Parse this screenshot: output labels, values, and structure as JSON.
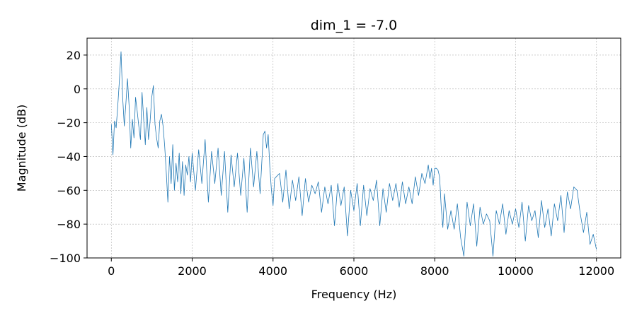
{
  "chart_data": {
    "type": "line",
    "title": "dim_1 = -7.0",
    "xlabel": "Frequency (Hz)",
    "ylabel": "Magnitude (dB)",
    "xlim": [
      -600,
      12600
    ],
    "ylim": [
      -100,
      30
    ],
    "x_ticks": [
      0,
      2000,
      4000,
      6000,
      8000,
      10000,
      12000
    ],
    "y_ticks": [
      20,
      0,
      -20,
      -40,
      -60,
      -80,
      -100
    ],
    "grid": true,
    "line_color": "#1f77b4",
    "series": [
      {
        "x": [
          0,
          40,
          80,
          120,
          160,
          200,
          240,
          280,
          320,
          360,
          400,
          440,
          480,
          520,
          560,
          600,
          640,
          680,
          720,
          760,
          800,
          840,
          880,
          920,
          960,
          1000,
          1040,
          1080,
          1120,
          1160,
          1200,
          1240,
          1280,
          1320,
          1360,
          1400,
          1440,
          1480,
          1520,
          1560,
          1600,
          1640,
          1680,
          1720,
          1760,
          1800,
          1840,
          1880,
          1920,
          1960,
          2000,
          2080,
          2160,
          2240,
          2320,
          2400,
          2480,
          2560,
          2640,
          2720,
          2800,
          2880,
          2960,
          3040,
          3120,
          3200,
          3280,
          3360,
          3440,
          3520,
          3600,
          3680,
          3760,
          3800,
          3840,
          3880,
          3920,
          3960,
          4000,
          4040,
          4080,
          4160,
          4240,
          4320,
          4400,
          4480,
          4560,
          4640,
          4720,
          4800,
          4880,
          4960,
          5040,
          5120,
          5200,
          5280,
          5360,
          5440,
          5520,
          5600,
          5680,
          5760,
          5840,
          5920,
          6000,
          6080,
          6160,
          6240,
          6320,
          6400,
          6480,
          6560,
          6640,
          6720,
          6800,
          6880,
          6960,
          7040,
          7120,
          7200,
          7280,
          7360,
          7440,
          7520,
          7600,
          7680,
          7760,
          7840,
          7880,
          7920,
          7960,
          8000,
          8040,
          8080,
          8120,
          8160,
          8200,
          8240,
          8320,
          8400,
          8480,
          8560,
          8640,
          8720,
          8800,
          8880,
          8960,
          9040,
          9120,
          9200,
          9280,
          9360,
          9440,
          9520,
          9600,
          9680,
          9760,
          9840,
          9920,
          10000,
          10080,
          10160,
          10240,
          10320,
          10400,
          10480,
          10560,
          10640,
          10720,
          10800,
          10880,
          10960,
          11040,
          11120,
          11200,
          11280,
          11360,
          11440,
          11520,
          11600,
          11680,
          11760,
          11840,
          11920,
          12000
        ],
        "y": [
          -21,
          -39,
          -19,
          -23,
          -10,
          5,
          22,
          -5,
          -22,
          -9,
          6,
          -10,
          -35,
          -18,
          -29,
          -5,
          -13,
          -22,
          -30,
          -2,
          -18,
          -33,
          -11,
          -30,
          -19,
          -5,
          2,
          -21,
          -29,
          -35,
          -19,
          -15,
          -22,
          -34,
          -50,
          -67,
          -40,
          -56,
          -33,
          -60,
          -44,
          -55,
          -38,
          -62,
          -43,
          -63,
          -45,
          -51,
          -40,
          -55,
          -38,
          -60,
          -36,
          -56,
          -30,
          -67,
          -37,
          -56,
          -35,
          -63,
          -37,
          -73,
          -39,
          -58,
          -38,
          -63,
          -41,
          -73,
          -35,
          -58,
          -37,
          -62,
          -27,
          -25,
          -35,
          -27,
          -46,
          -60,
          -69,
          -53,
          -52,
          -50,
          -67,
          -48,
          -71,
          -54,
          -66,
          -52,
          -75,
          -53,
          -67,
          -57,
          -62,
          -55,
          -73,
          -58,
          -68,
          -57,
          -81,
          -56,
          -69,
          -58,
          -87,
          -60,
          -72,
          -56,
          -81,
          -57,
          -75,
          -59,
          -66,
          -54,
          -81,
          -59,
          -73,
          -56,
          -66,
          -56,
          -70,
          -55,
          -68,
          -58,
          -68,
          -52,
          -63,
          -50,
          -56,
          -45,
          -53,
          -47,
          -57,
          -47,
          -47,
          -48,
          -52,
          -70,
          -82,
          -62,
          -83,
          -72,
          -83,
          -68,
          -88,
          -99,
          -67,
          -81,
          -68,
          -93,
          -70,
          -80,
          -74,
          -78,
          -99,
          -72,
          -80,
          -68,
          -86,
          -72,
          -80,
          -71,
          -82,
          -67,
          -90,
          -69,
          -78,
          -72,
          -88,
          -66,
          -82,
          -71,
          -87,
          -68,
          -78,
          -63,
          -85,
          -61,
          -71,
          -58,
          -60,
          -74,
          -85,
          -73,
          -92,
          -86,
          -95
        ]
      }
    ]
  }
}
